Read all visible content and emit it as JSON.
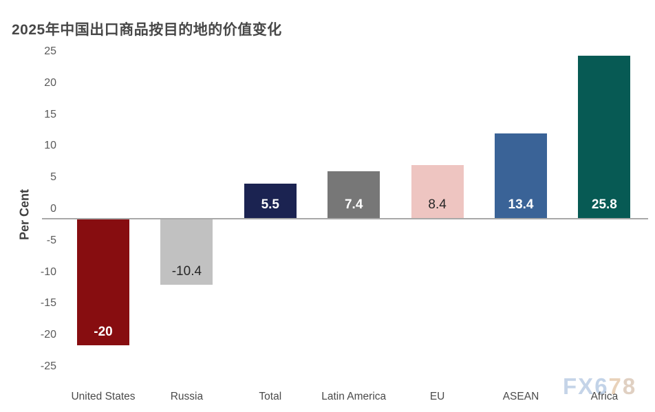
{
  "title": "2025年中国出口商品按目的地的价值变化",
  "watermark": {
    "text": "FX678",
    "char_colors": [
      "#c5d4e8",
      "#c5d4e8",
      "#c2d3e8",
      "#e9d2ba",
      "#e0d0c2"
    ]
  },
  "colors": {
    "title": "#474747",
    "tick_labels": "#595959",
    "category_labels": "#4a4a4a",
    "axis_line": "#a8a8a8",
    "background": "#ffffff"
  },
  "chart_data": {
    "type": "bar",
    "title": "2025年中国出口商品按目的地的价值变化",
    "xlabel": "",
    "ylabel": "Per Cent",
    "categories": [
      "United States",
      "Russia",
      "Total",
      "Latin America",
      "EU",
      "ASEAN",
      "Africa"
    ],
    "values": [
      -20,
      -10.4,
      5.5,
      7.4,
      8.4,
      13.4,
      25.8
    ],
    "value_labels": [
      "-20",
      "-10.4",
      "5.5",
      "7.4",
      "8.4",
      "13.4",
      "25.8"
    ],
    "bar_colors": [
      "#870d10",
      "#c1c1c1",
      "#1b2351",
      "#777777",
      "#eec5c1",
      "#3a6397",
      "#075a54"
    ],
    "value_label_colors": [
      "#ffffff",
      "#262626",
      "#ffffff",
      "#ffffff",
      "#262626",
      "#ffffff",
      "#ffffff"
    ],
    "ylim": [
      -25,
      25
    ],
    "yticks": [
      25,
      20,
      15,
      10,
      5,
      0,
      -5,
      -10,
      -15,
      -20,
      -25
    ],
    "grid": false,
    "legend": null
  }
}
